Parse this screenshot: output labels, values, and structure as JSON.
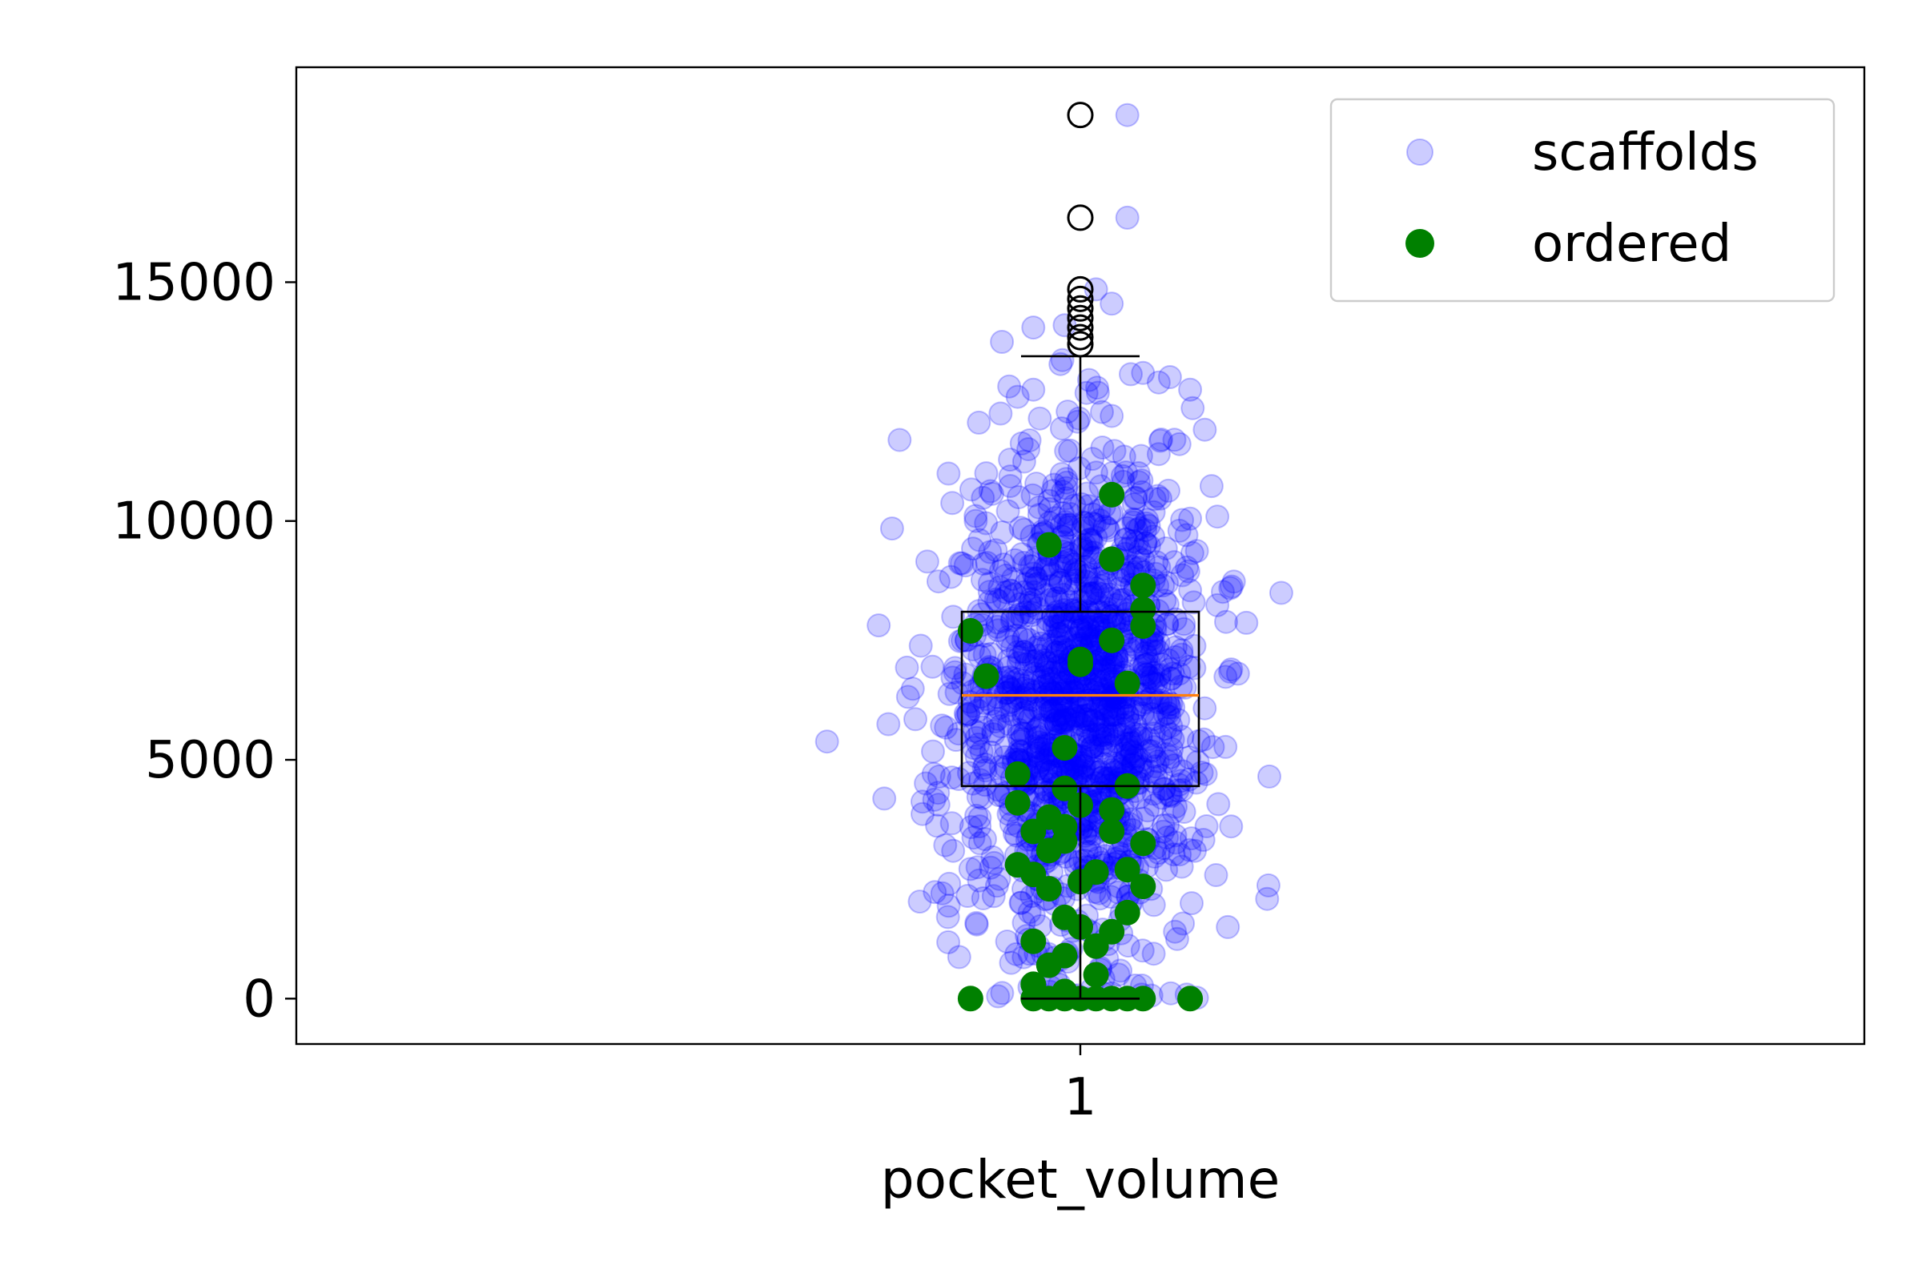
{
  "chart_data": {
    "type": "scatter",
    "subtype": "box plot with jittered strip points",
    "xlabel": "pocket_volume",
    "ylabel": "",
    "x_categories": [
      "1"
    ],
    "ylim": [
      -950,
      19500
    ],
    "y_ticks": [
      0,
      5000,
      10000,
      15000
    ],
    "grid": false,
    "legend": {
      "placement": "top-right",
      "entries": [
        "scaffolds",
        "ordered"
      ]
    },
    "box": {
      "position": 1,
      "q1": 4450,
      "median": 6350,
      "q3": 8100,
      "whisker_low": 0,
      "whisker_high": 13450,
      "median_color": "#ff7f0e",
      "outliers": [
        18500,
        16350,
        14850,
        14650,
        14450,
        14250,
        14050,
        13850,
        13700
      ]
    },
    "series": [
      {
        "name": "scaffolds",
        "color": "#0000ff",
        "alpha": 0.2,
        "n_points": 1500,
        "distribution": {
          "mean": 6300,
          "sd": 2600,
          "min": 0,
          "max": 13400,
          "jitter_sd": 0.04
        },
        "points": [
          [
            1.03,
            18500
          ],
          [
            1.03,
            16350
          ],
          [
            1.01,
            14850
          ],
          [
            1.02,
            14550
          ],
          [
            0.95,
            13750
          ],
          [
            0.99,
            14100
          ],
          [
            0.97,
            14050
          ],
          [
            1.07,
            12750
          ],
          [
            1.06,
            11700
          ],
          [
            1.07,
            10050
          ],
          [
            1.07,
            8550
          ],
          [
            1.08,
            4700
          ],
          [
            0.91,
            4650
          ],
          [
            0.96,
            12600
          ],
          [
            1.04,
            13100
          ],
          [
            0.94,
            11000
          ],
          [
            1.05,
            12900
          ],
          [
            1.02,
            12200
          ],
          [
            0.97,
            12750
          ],
          [
            1.05,
            11400
          ]
        ]
      },
      {
        "name": "ordered",
        "color": "#008000",
        "points": [
          [
            1.02,
            10550
          ],
          [
            0.98,
            9500
          ],
          [
            1.02,
            9200
          ],
          [
            1.04,
            8650
          ],
          [
            1.04,
            8150
          ],
          [
            1.04,
            7800
          ],
          [
            0.93,
            7700
          ],
          [
            1.02,
            7500
          ],
          [
            1.0,
            7100
          ],
          [
            1.0,
            7000
          ],
          [
            0.94,
            6750
          ],
          [
            1.03,
            6600
          ],
          [
            0.99,
            5250
          ],
          [
            0.96,
            4700
          ],
          [
            1.03,
            4450
          ],
          [
            0.99,
            4400
          ],
          [
            0.96,
            4100
          ],
          [
            1.0,
            4050
          ],
          [
            1.02,
            3950
          ],
          [
            0.98,
            3800
          ],
          [
            0.99,
            3600
          ],
          [
            0.97,
            3500
          ],
          [
            1.02,
            3500
          ],
          [
            0.99,
            3300
          ],
          [
            1.04,
            3250
          ],
          [
            0.98,
            3100
          ],
          [
            0.96,
            2800
          ],
          [
            1.03,
            2700
          ],
          [
            1.01,
            2650
          ],
          [
            0.97,
            2600
          ],
          [
            1.0,
            2450
          ],
          [
            1.04,
            2350
          ],
          [
            0.98,
            2300
          ],
          [
            1.03,
            1800
          ],
          [
            0.99,
            1700
          ],
          [
            1.0,
            1500
          ],
          [
            1.02,
            1400
          ],
          [
            0.97,
            1200
          ],
          [
            1.01,
            1100
          ],
          [
            0.99,
            900
          ],
          [
            0.98,
            700
          ],
          [
            1.01,
            500
          ],
          [
            0.97,
            300
          ],
          [
            0.99,
            150
          ],
          [
            0.93,
            0
          ],
          [
            1.07,
            0
          ],
          [
            0.97,
            0
          ],
          [
            0.98,
            0
          ],
          [
            0.99,
            0
          ],
          [
            1.0,
            0
          ],
          [
            1.01,
            0
          ],
          [
            1.02,
            0
          ],
          [
            1.03,
            0
          ],
          [
            1.04,
            0
          ]
        ]
      }
    ]
  }
}
